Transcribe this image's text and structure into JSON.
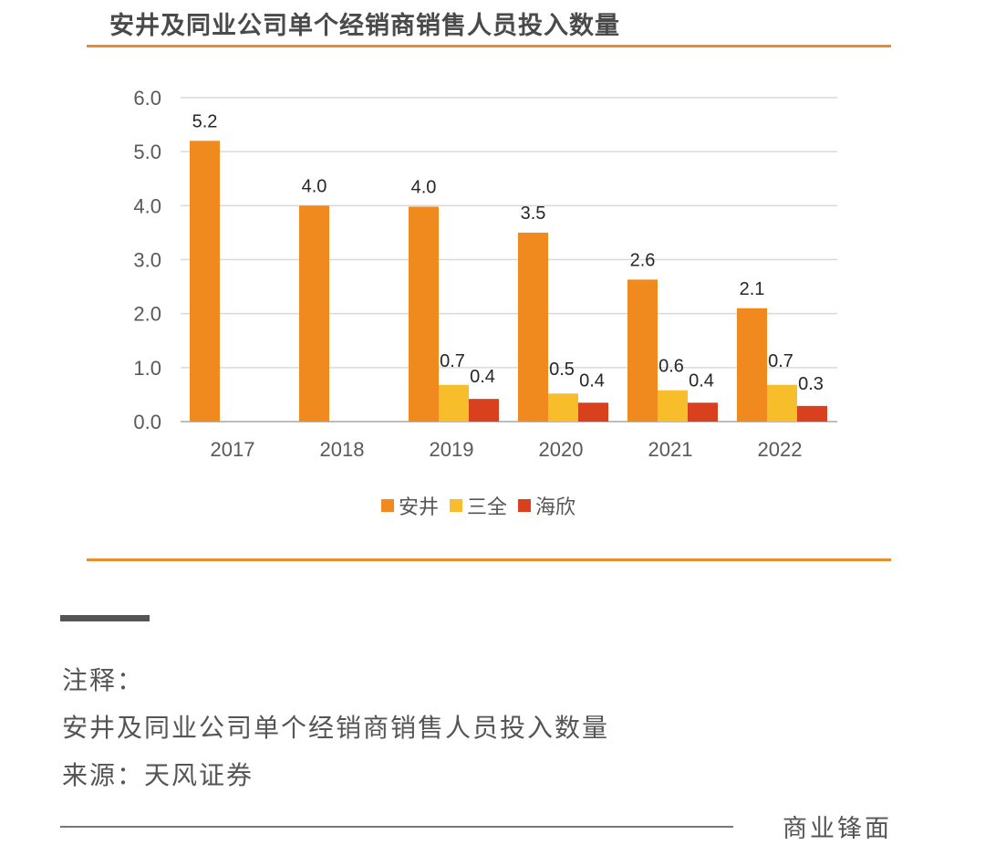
{
  "header": {
    "title": "安井及同业公司单个经销商销售人员投入数量"
  },
  "chart_data": {
    "type": "bar",
    "categories": [
      "2017",
      "2018",
      "2019",
      "2020",
      "2021",
      "2022"
    ],
    "series": [
      {
        "name": "安井",
        "color": "#f08a1e",
        "values": [
          5.2,
          4.0,
          4.0,
          3.5,
          2.6,
          2.1
        ]
      },
      {
        "name": "三全",
        "color": "#f8bd2a",
        "values": [
          null,
          null,
          0.7,
          0.5,
          0.6,
          0.7
        ]
      },
      {
        "name": "海欣",
        "color": "#d9411e",
        "values": [
          null,
          null,
          0.4,
          0.4,
          0.4,
          0.3
        ]
      }
    ],
    "plot_values": {
      "安井": [
        5.2,
        4.0,
        3.98,
        3.5,
        2.63,
        2.1
      ],
      "三全": [
        null,
        null,
        0.68,
        0.52,
        0.58,
        0.68
      ],
      "海欣": [
        null,
        null,
        0.42,
        0.35,
        0.35,
        0.29
      ]
    },
    "yticks": [
      "0.0",
      "1.0",
      "2.0",
      "3.0",
      "4.0",
      "5.0",
      "6.0"
    ],
    "ylim": [
      0,
      6
    ],
    "grid": true,
    "legend_position": "bottom"
  },
  "notes": {
    "label": "注释：",
    "text": "安井及同业公司单个经销商销售人员投入数量",
    "source": "来源：天风证券"
  },
  "footer": {
    "brand": "商业锋面"
  }
}
